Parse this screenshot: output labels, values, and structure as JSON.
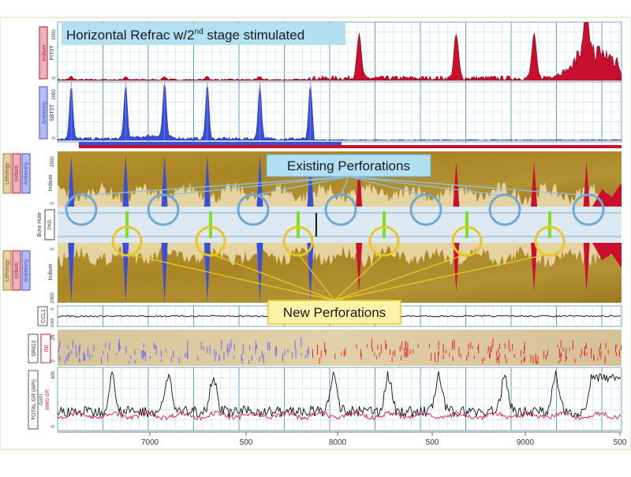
{
  "title": {
    "main": "Horizontal Refrac w/2",
    "superscript": "nd",
    "tail": " stage stimulated"
  },
  "callouts": {
    "existing": "Existing Perforations",
    "new": "New Perforations"
  },
  "tracks": {
    "indium": {
      "labels": [
        "Indium",
        "PIT0T"
      ],
      "scale_top": "2000",
      "scale_bottom": "0",
      "color": "#c8102e"
    },
    "antimony": {
      "labels": [
        "Antimony",
        "SBT0T"
      ],
      "scale_top": "2000",
      "scale_bottom": "0",
      "color": "#3a4fd8"
    },
    "upper_lith": {
      "labels": [
        "Lithology",
        "Indium",
        "Antimony"
      ],
      "axis_label": "Indium",
      "scale_top": "2000",
      "scale_bottom": "0"
    },
    "borehole": {
      "labels": [
        "Bore Hole",
        "PKR"
      ]
    },
    "lower_lith": {
      "labels": [
        "Lithology",
        "Indium",
        "Antimony"
      ],
      "axis_label": "Indium",
      "scale_top": "0",
      "scale_bottom": "2000"
    },
    "ccl": {
      "labels": [
        "CCL1"
      ],
      "scale_top": "0",
      "scale_bottom": "-1000"
    },
    "srig": {
      "labels": [
        "SRIG2",
        "INI"
      ],
      "scale_top": "25",
      "scale_bottom": "0"
    },
    "gr": {
      "labels": [
        "TOTAL GR (API)",
        "GAPI",
        "MWD GR"
      ],
      "scale_top": "300",
      "scale_bottom": "0"
    }
  },
  "x_axis": {
    "ticks": [
      "7000",
      "500",
      "8000",
      "500",
      "9000",
      "500"
    ],
    "range": [
      6700,
      9600
    ]
  },
  "colors": {
    "indium": "#c8102e",
    "antimony": "#3a4fd8",
    "lithology": "#a8862a",
    "existing": "#6ea8d8",
    "new": "#e8c820",
    "green": "#7ee01e",
    "callout_bg": "#b3dff2"
  }
}
